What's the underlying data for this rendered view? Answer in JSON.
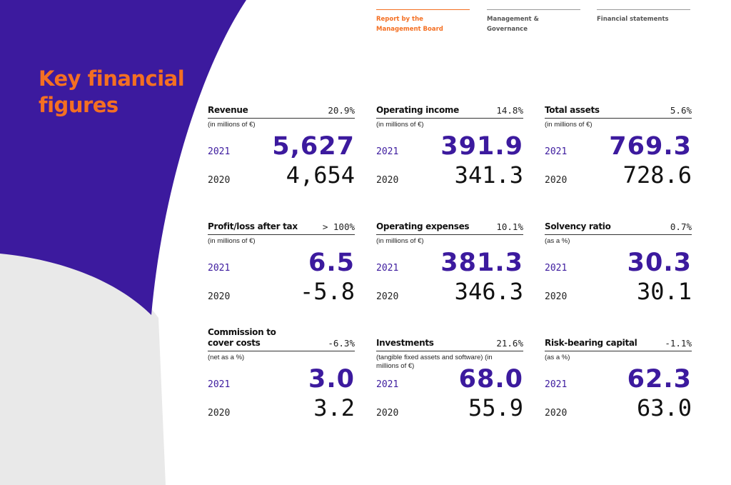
{
  "header": {
    "tabs": [
      {
        "label": "Report by the Management Board",
        "active": true
      },
      {
        "label": "Management & Governance",
        "active": false
      },
      {
        "label": "Financial statements",
        "active": false
      }
    ]
  },
  "title": "Key financial figures",
  "colors": {
    "accent_orange": "#f46f22",
    "brand_purple": "#3c1a9e",
    "background_grey": "#e9e9e9"
  },
  "cards": [
    {
      "title": "Revenue",
      "change": "20.9%",
      "unit": "(in millions of €)",
      "year_current": "2021",
      "value_current": "5,627",
      "year_previous": "2020",
      "value_previous": "4,654"
    },
    {
      "title": "Operating income",
      "change": "14.8%",
      "unit": "(in millions of €)",
      "year_current": "2021",
      "value_current": "391.9",
      "year_previous": "2020",
      "value_previous": "341.3"
    },
    {
      "title": "Total assets",
      "change": "5.6%",
      "unit": "(in millions of €)",
      "year_current": "2021",
      "value_current": "769.3",
      "year_previous": "2020",
      "value_previous": "728.6"
    },
    {
      "title": "Profit/loss after tax",
      "change": "> 100%",
      "unit": "(in millions of €)",
      "year_current": "2021",
      "value_current": "6.5",
      "year_previous": "2020",
      "value_previous": "-5.8"
    },
    {
      "title": "Operating expenses",
      "change": "10.1%",
      "unit": "(in millions of €)",
      "year_current": "2021",
      "value_current": "381.3",
      "year_previous": "2020",
      "value_previous": "346.3"
    },
    {
      "title": "Solvency ratio",
      "change": "0.7%",
      "unit": "(as a %)",
      "year_current": "2021",
      "value_current": "30.3",
      "year_previous": "2020",
      "value_previous": "30.1"
    },
    {
      "title": "Commission to cover costs",
      "change": "-6.3%",
      "unit": "(net as a %)",
      "year_current": "2021",
      "value_current": "3.0",
      "year_previous": "2020",
      "value_previous": "3.2"
    },
    {
      "title": "Investments",
      "change": "21.6%",
      "unit": "(tangible fixed assets and software) (in millions of €)",
      "year_current": "2021",
      "value_current": "68.0",
      "year_previous": "2020",
      "value_previous": "55.9"
    },
    {
      "title": "Risk-bearing capital",
      "change": "-1.1%",
      "unit": "(as a %)",
      "year_current": "2021",
      "value_current": "62.3",
      "year_previous": "2020",
      "value_previous": "63.0"
    }
  ]
}
